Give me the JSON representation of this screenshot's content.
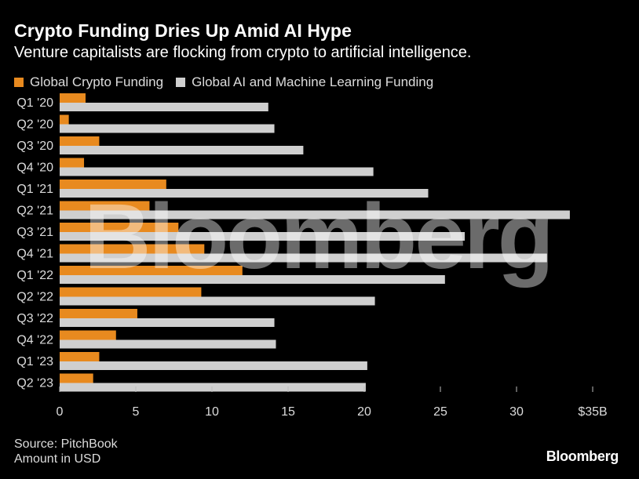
{
  "header": {
    "title": "Crypto Funding Dries Up Amid AI Hype",
    "subtitle": "Venture capitalists are flocking from crypto to artificial intelligence."
  },
  "legend": [
    {
      "label": "Global Crypto Funding",
      "color": "#e88a1f"
    },
    {
      "label": "Global AI and Machine Learning Funding",
      "color": "#cfcfcf"
    }
  ],
  "footer": {
    "source": "Source: PitchBook",
    "note": "Amount in USD",
    "brand": "Bloomberg"
  },
  "watermark": "Bloomberg",
  "chart_data": {
    "type": "bar",
    "orientation": "horizontal",
    "categories": [
      "Q1 '20",
      "Q2 '20",
      "Q3 '20",
      "Q4 '20",
      "Q1 '21",
      "Q2 '21",
      "Q3 '21",
      "Q4 '21",
      "Q1 '22",
      "Q2 '22",
      "Q3 '22",
      "Q4 '22",
      "Q1 '23",
      "Q2 '23"
    ],
    "series": [
      {
        "name": "Global Crypto Funding",
        "color": "#e88a1f",
        "values": [
          1.7,
          0.6,
          2.6,
          1.6,
          7.0,
          5.9,
          7.8,
          9.5,
          12.0,
          9.3,
          5.1,
          3.7,
          2.6,
          2.2
        ]
      },
      {
        "name": "Global AI and Machine Learning Funding",
        "color": "#cfcfcf",
        "values": [
          13.7,
          14.1,
          16.0,
          20.6,
          24.2,
          33.5,
          26.6,
          32.0,
          25.3,
          20.7,
          14.1,
          14.2,
          20.2,
          20.1
        ]
      }
    ],
    "x_ticks": [
      "0",
      "5",
      "10",
      "15",
      "20",
      "25",
      "30",
      "$35B"
    ],
    "xlim": [
      0,
      35
    ],
    "grid": false,
    "legend_position": "top-left"
  }
}
